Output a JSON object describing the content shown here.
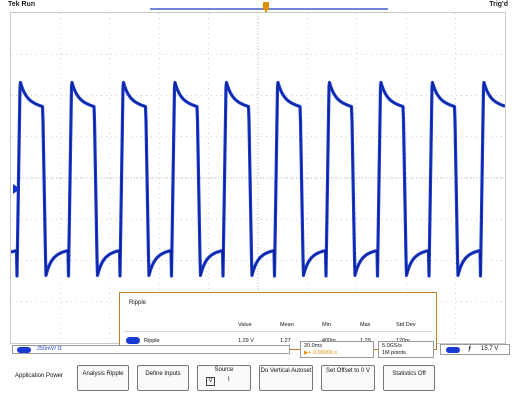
{
  "header": {
    "left_label": "Tek Run",
    "right_label": "Trig'd"
  },
  "measurement": {
    "title": "Ripple",
    "columns": [
      "Value",
      "Mean",
      "Min",
      "Max",
      "Std Dev"
    ],
    "row": {
      "name": "Ripple",
      "value": "1.29 V",
      "mean": "1.27",
      "min": "400m",
      "max": "1.29",
      "std_dev": "120m"
    }
  },
  "status": {
    "channel": "250mV/ Ω",
    "time_div": "20.0ms",
    "time_pos": "▶+ 0.00000 s",
    "sample_rate": "5.0GS/s",
    "record_length": "1M points",
    "trigger_source": "ƒ",
    "trigger_level": "15.7 V"
  },
  "menu": {
    "application_power": "Application Power",
    "analysis_ripple": "Analysis Ripple",
    "define_inputs": "Define Inputs",
    "source_label": "Source",
    "source_check": "V",
    "source_value": "I",
    "do_vertical_autoset": "Do Vertical Autoset",
    "set_offset": "Set Offset to 0 V",
    "statistics": "Statistics Off"
  },
  "colors": {
    "trace": "#1a3bd1",
    "accent": "#e08c00",
    "panel_border": "#c07a2c"
  },
  "icons": {
    "channel_marker": "ch1-ground-marker-icon",
    "trigger_position": "trigger-position-icon"
  }
}
